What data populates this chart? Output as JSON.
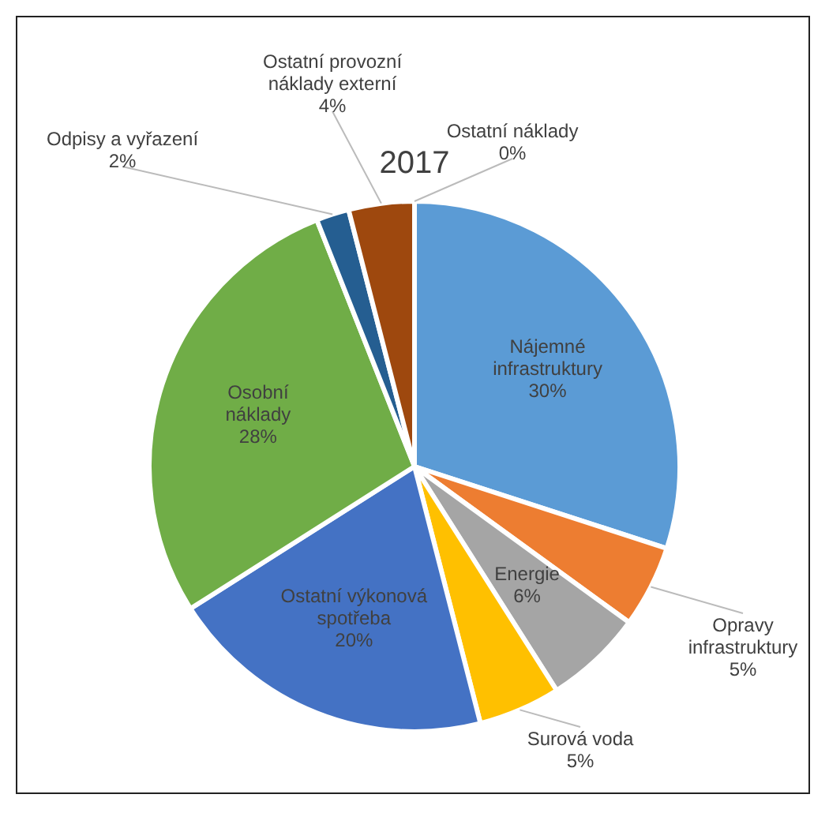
{
  "chart_data": {
    "type": "pie",
    "title": "2017",
    "categories": [
      "Nájemné infrastruktury",
      "Opravy infrastruktury",
      "Energie",
      "Surová voda",
      "Ostatní výkonová spotřeba",
      "Osobní náklady",
      "Odpisy a vyřazení",
      "Ostatní provozní náklady externí",
      "Ostatní náklady"
    ],
    "values": [
      30,
      5,
      6,
      5,
      20,
      28,
      2,
      4,
      0
    ],
    "colors": [
      "#5b9bd5",
      "#ed7d31",
      "#a5a5a5",
      "#ffc000",
      "#4472c4",
      "#70ad47",
      "#255e91",
      "#9e480e",
      "#636363"
    ],
    "value_labels": [
      "30%",
      "5%",
      "6%",
      "5%",
      "20%",
      "28%",
      "2%",
      "4%",
      "0%"
    ],
    "legend": false
  }
}
